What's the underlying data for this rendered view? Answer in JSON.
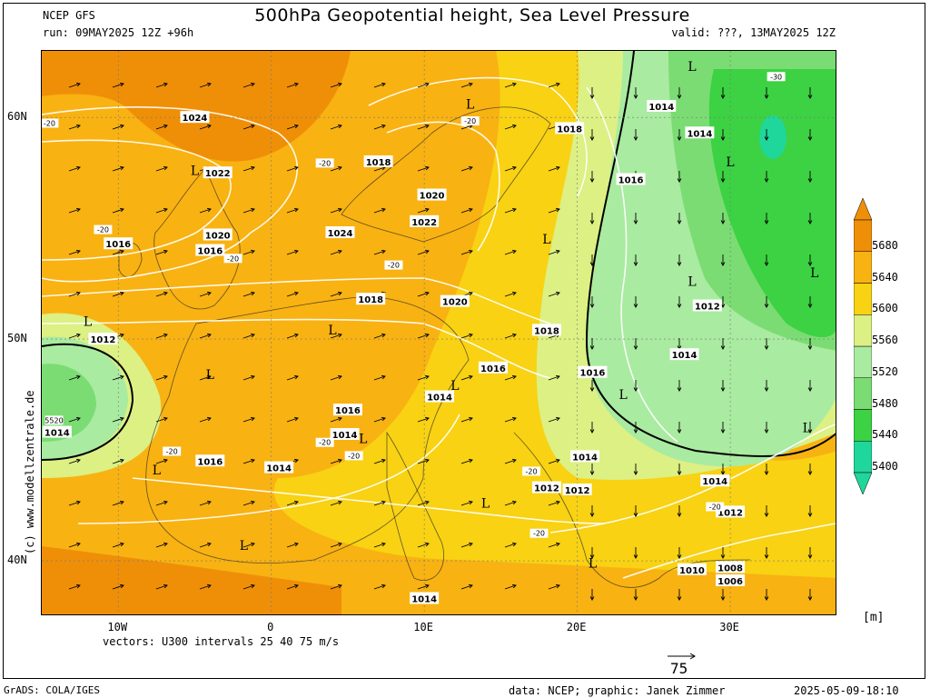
{
  "header": {
    "model": "NCEP GFS",
    "run": "run: 09MAY2025 12Z +96h",
    "title": "500hPa Geopotential height, Sea Level Pressure",
    "valid": "valid: ???, 13MAY2025 12Z"
  },
  "footer": {
    "vectors": "vectors: U300 intervals 25 40 75 m/s",
    "grads": "GrADS: COLA/IGES",
    "credits": "data: NCEP; graphic: Janek Zimmer",
    "timestamp": "2025-05-09-18:10",
    "copyright": "(c) www.modellzentrale.de",
    "unit": "[m]",
    "vector_ref": "75"
  },
  "chart_data": {
    "type": "heatmap",
    "title": "500hPa Geopotential height, Sea Level Pressure",
    "xlim": [
      -15,
      37
    ],
    "ylim": [
      37.5,
      63
    ],
    "x_ticks": [
      {
        "v": -10,
        "label": "10W"
      },
      {
        "v": 0,
        "label": "0"
      },
      {
        "v": 10,
        "label": "10E"
      },
      {
        "v": 20,
        "label": "20E"
      },
      {
        "v": 30,
        "label": "30E"
      }
    ],
    "y_ticks": [
      {
        "v": 60,
        "label": "60N"
      },
      {
        "v": 50,
        "label": "50N"
      },
      {
        "v": 40,
        "label": "40N"
      }
    ],
    "colorbar": {
      "levels": [
        5400,
        5440,
        5480,
        5520,
        5560,
        5600,
        5640,
        5680
      ],
      "labels": [
        "5400",
        "5440",
        "5480",
        "5520",
        "5560",
        "5600",
        "5640",
        "5680"
      ],
      "colors": [
        "#1fd79a",
        "#3cd243",
        "#7bdc73",
        "#a9eba0",
        "#dcf084",
        "#f8d213",
        "#f8b212",
        "#ef8f08"
      ],
      "unit": "[m]"
    },
    "pressure_labels": [
      {
        "text": "1024",
        "lon": -5,
        "lat": 60
      },
      {
        "text": "1022",
        "lon": -3.5,
        "lat": 57.5
      },
      {
        "text": "1020",
        "lon": -3.5,
        "lat": 54.7
      },
      {
        "text": "1016",
        "lon": -10,
        "lat": 54.3
      },
      {
        "text": "1016",
        "lon": -4,
        "lat": 54
      },
      {
        "text": "1018",
        "lon": 7,
        "lat": 58
      },
      {
        "text": "1020",
        "lon": 10.5,
        "lat": 56.5
      },
      {
        "text": "1022",
        "lon": 10,
        "lat": 55.3
      },
      {
        "text": "1024",
        "lon": 4.5,
        "lat": 54.8
      },
      {
        "text": "1018",
        "lon": 6.5,
        "lat": 51.8
      },
      {
        "text": "1020",
        "lon": 12,
        "lat": 51.7
      },
      {
        "text": "1018",
        "lon": 18,
        "lat": 50.4
      },
      {
        "text": "1016",
        "lon": 14.5,
        "lat": 48.7
      },
      {
        "text": "1016",
        "lon": 21,
        "lat": 48.5
      },
      {
        "text": "1014",
        "lon": 11,
        "lat": 47.4
      },
      {
        "text": "1016",
        "lon": 5,
        "lat": 46.8
      },
      {
        "text": "1014",
        "lon": 4.8,
        "lat": 45.7
      },
      {
        "text": "1016",
        "lon": -4,
        "lat": 44.5
      },
      {
        "text": "1014",
        "lon": 0.5,
        "lat": 44.2
      },
      {
        "text": "1014",
        "lon": 20.5,
        "lat": 44.7
      },
      {
        "text": "1012",
        "lon": 18,
        "lat": 43.3
      },
      {
        "text": "1012",
        "lon": 20,
        "lat": 43.2
      },
      {
        "text": "1014",
        "lon": 29,
        "lat": 43.6
      },
      {
        "text": "1012",
        "lon": 30,
        "lat": 42.2
      },
      {
        "text": "1010",
        "lon": 27.5,
        "lat": 39.6
      },
      {
        "text": "1008",
        "lon": 30,
        "lat": 39.7
      },
      {
        "text": "1006",
        "lon": 30,
        "lat": 39.1
      },
      {
        "text": "1014",
        "lon": 10,
        "lat": 38.3
      },
      {
        "text": "1018",
        "lon": 19.5,
        "lat": 59.5
      },
      {
        "text": "1016",
        "lon": 23.5,
        "lat": 57.2
      },
      {
        "text": "1014",
        "lon": 25.5,
        "lat": 60.5
      },
      {
        "text": "1014",
        "lon": 28,
        "lat": 59.3
      },
      {
        "text": "1012",
        "lon": 28.5,
        "lat": 51.5
      },
      {
        "text": "1014",
        "lon": 27,
        "lat": 49.3
      },
      {
        "text": "1012",
        "lon": -11,
        "lat": 50
      },
      {
        "text": "1014",
        "lon": -14,
        "lat": 45.8
      }
    ],
    "low_markers": [
      {
        "lon": -12,
        "lat": 50.6
      },
      {
        "lon": -5,
        "lat": 57.4
      },
      {
        "lon": 13,
        "lat": 60.4
      },
      {
        "lon": 4,
        "lat": 50.2
      },
      {
        "lon": -4,
        "lat": 48.2
      },
      {
        "lon": 12,
        "lat": 47.7
      },
      {
        "lon": 6,
        "lat": 45.3
      },
      {
        "lon": -7.5,
        "lat": 43.9
      },
      {
        "lon": -1.8,
        "lat": 40.5
      },
      {
        "lon": 14,
        "lat": 42.4
      },
      {
        "lon": 21,
        "lat": 39.7
      },
      {
        "lon": 18,
        "lat": 54.3
      },
      {
        "lon": 27.5,
        "lat": 62.1
      },
      {
        "lon": 30,
        "lat": 57.8
      },
      {
        "lon": 27.5,
        "lat": 52.4
      },
      {
        "lon": 35.5,
        "lat": 52.8
      },
      {
        "lon": 23,
        "lat": 47.3
      },
      {
        "lon": 35,
        "lat": 45.8
      }
    ],
    "temp_labels": [
      {
        "text": "-20",
        "lon": -14.5,
        "lat": 59.7
      },
      {
        "text": "-20",
        "lon": 3.5,
        "lat": 57.9
      },
      {
        "text": "-20",
        "lon": 13,
        "lat": 59.8
      },
      {
        "text": "-20",
        "lon": -11,
        "lat": 54.9
      },
      {
        "text": "-20",
        "lon": -2.5,
        "lat": 53.6
      },
      {
        "text": "-20",
        "lon": 8,
        "lat": 53.3
      },
      {
        "text": "-30",
        "lon": 33,
        "lat": 61.8
      },
      {
        "text": "-20",
        "lon": -6.5,
        "lat": 44.9
      },
      {
        "text": "-20",
        "lon": 3.5,
        "lat": 45.3
      },
      {
        "text": "-20",
        "lon": 5.4,
        "lat": 44.7
      },
      {
        "text": "-20",
        "lon": 17,
        "lat": 44
      },
      {
        "text": "-20",
        "lon": 17.5,
        "lat": 41.2
      },
      {
        "text": "-20",
        "lon": 29,
        "lat": 42.4
      },
      {
        "text": "5520",
        "lon": -14.2,
        "lat": 46.3
      }
    ],
    "legend": "vectors: U300 intervals 25 40 75 m/s"
  }
}
